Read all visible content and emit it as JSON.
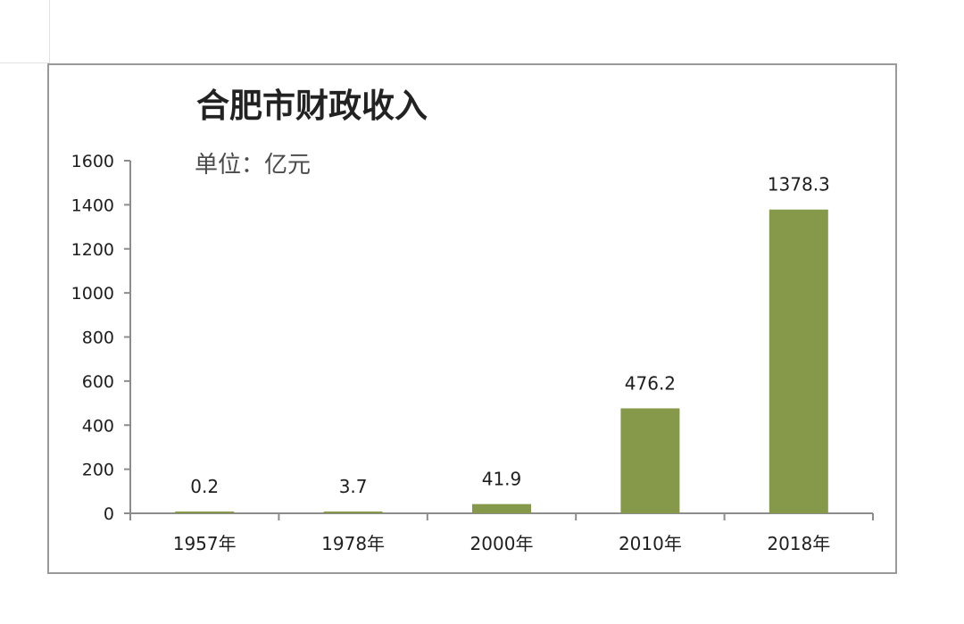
{
  "chart_data": {
    "type": "bar",
    "title": "合肥市财政收入",
    "unit_note": "单位：亿元",
    "categories": [
      "1957年",
      "1978年",
      "2000年",
      "2010年",
      "2018年"
    ],
    "values": [
      0.2,
      3.7,
      41.9,
      476.2,
      1378.3
    ],
    "data_labels": [
      "0.2",
      "3.7",
      "41.9",
      "476.2",
      "1378.3"
    ],
    "y_ticks": [
      0,
      200,
      400,
      600,
      800,
      1000,
      1200,
      1400,
      1600
    ],
    "ylim": [
      0,
      1600
    ],
    "xlabel": "",
    "ylabel": "",
    "grid": false,
    "legend": "none",
    "bar_color": "#86994a"
  }
}
